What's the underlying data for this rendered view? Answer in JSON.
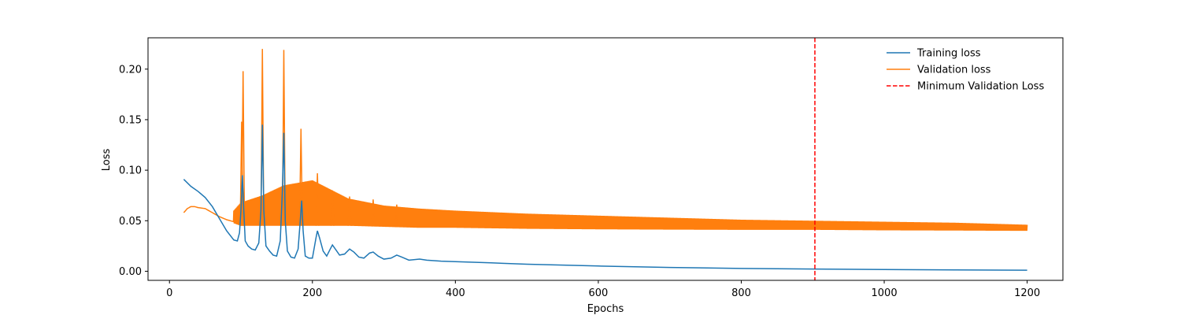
{
  "chart_data": {
    "type": "line",
    "title": "",
    "xlabel": "Epochs",
    "ylabel": "Loss",
    "xlim": [
      -30,
      1250
    ],
    "ylim": [
      -0.009,
      0.231
    ],
    "xticks": [
      0,
      200,
      400,
      600,
      800,
      1000,
      1200
    ],
    "xtick_labels": [
      "0",
      "200",
      "400",
      "600",
      "800",
      "1000",
      "1200"
    ],
    "yticks": [
      0.0,
      0.05,
      0.1,
      0.15,
      0.2
    ],
    "ytick_labels": [
      "0.00",
      "0.05",
      "0.10",
      "0.15",
      "0.20"
    ],
    "grid": false,
    "legend_position": "top-right",
    "series": [
      {
        "name": "Training loss",
        "color": "#1f77b4",
        "style": "solid",
        "x": [
          20,
          30,
          40,
          50,
          60,
          70,
          80,
          90,
          95,
          98,
          100,
          102,
          104,
          106,
          110,
          115,
          120,
          125,
          128,
          130,
          132,
          135,
          140,
          145,
          150,
          155,
          158,
          160,
          162,
          165,
          170,
          175,
          180,
          183,
          185,
          187,
          190,
          195,
          200,
          205,
          207,
          210,
          215,
          220,
          225,
          228,
          232,
          238,
          245,
          252,
          258,
          265,
          272,
          280,
          285,
          292,
          300,
          310,
          318,
          325,
          335,
          350,
          360,
          380,
          400,
          450,
          500,
          600,
          700,
          800,
          900,
          1000,
          1100,
          1200
        ],
        "y": [
          0.091,
          0.084,
          0.079,
          0.073,
          0.064,
          0.052,
          0.04,
          0.031,
          0.03,
          0.038,
          0.06,
          0.095,
          0.06,
          0.03,
          0.025,
          0.022,
          0.021,
          0.028,
          0.06,
          0.145,
          0.06,
          0.025,
          0.02,
          0.016,
          0.015,
          0.03,
          0.08,
          0.137,
          0.05,
          0.02,
          0.014,
          0.013,
          0.022,
          0.05,
          0.07,
          0.04,
          0.015,
          0.013,
          0.013,
          0.033,
          0.04,
          0.033,
          0.02,
          0.015,
          0.022,
          0.026,
          0.022,
          0.016,
          0.017,
          0.022,
          0.019,
          0.014,
          0.013,
          0.018,
          0.019,
          0.015,
          0.012,
          0.013,
          0.016,
          0.014,
          0.011,
          0.012,
          0.011,
          0.01,
          0.0095,
          0.0083,
          0.007,
          0.0052,
          0.0038,
          0.0028,
          0.0022,
          0.0017,
          0.0013,
          0.001
        ]
      },
      {
        "name": "Validation loss",
        "color": "#ff7f0e",
        "style": "solid",
        "x": [
          20,
          25,
          30,
          35,
          40,
          50,
          60,
          70,
          80,
          90,
          95,
          100,
          105,
          110,
          120,
          130,
          140,
          150,
          160,
          170,
          180,
          190,
          200,
          210,
          220,
          230,
          240,
          250,
          260,
          270,
          280,
          290,
          300,
          320,
          340,
          350,
          380,
          400,
          500,
          600,
          700,
          800,
          900,
          1000,
          1100,
          1200
        ],
        "y": [
          0.058,
          0.062,
          0.064,
          0.064,
          0.063,
          0.062,
          0.058,
          0.054,
          0.051,
          0.049,
          0.05,
          0.065,
          0.08,
          0.07,
          0.055,
          0.06,
          0.05,
          0.052,
          0.06,
          0.05,
          0.055,
          0.052,
          0.06,
          0.055,
          0.053,
          0.056,
          0.053,
          0.058,
          0.054,
          0.052,
          0.055,
          0.053,
          0.051,
          0.053,
          0.051,
          0.052,
          0.051,
          0.051,
          0.049,
          0.048,
          0.047,
          0.0465,
          0.046,
          0.045,
          0.0445,
          0.044
        ],
        "band_x": [
          20,
          40,
          60,
          80,
          100,
          130,
          160,
          200,
          250,
          300,
          350,
          400,
          500,
          600,
          700,
          800,
          900,
          1000,
          1100,
          1200
        ],
        "band_min": [
          0.058,
          0.063,
          0.056,
          0.05,
          0.045,
          0.045,
          0.045,
          0.045,
          0.045,
          0.044,
          0.043,
          0.043,
          0.042,
          0.0415,
          0.0412,
          0.041,
          0.041,
          0.0405,
          0.0403,
          0.04
        ],
        "band_max": [
          0.058,
          0.064,
          0.058,
          0.052,
          0.068,
          0.075,
          0.085,
          0.09,
          0.072,
          0.065,
          0.062,
          0.06,
          0.057,
          0.055,
          0.053,
          0.051,
          0.05,
          0.049,
          0.048,
          0.046
        ],
        "spikes": [
          {
            "x": 101,
            "y": 0.148
          },
          {
            "x": 103,
            "y": 0.198
          },
          {
            "x": 130,
            "y": 0.22
          },
          {
            "x": 160,
            "y": 0.219
          },
          {
            "x": 184,
            "y": 0.141
          },
          {
            "x": 207,
            "y": 0.097
          },
          {
            "x": 228,
            "y": 0.08
          },
          {
            "x": 252,
            "y": 0.074
          },
          {
            "x": 285,
            "y": 0.071
          },
          {
            "x": 318,
            "y": 0.066
          }
        ]
      },
      {
        "name": "Minimum Validation Loss",
        "color": "#ff0000",
        "style": "dashed",
        "vline_x": 903
      }
    ]
  }
}
